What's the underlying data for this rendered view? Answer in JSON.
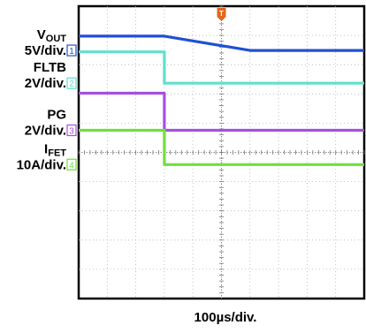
{
  "chart_data": {
    "type": "line",
    "xlabel": "100µs/div.",
    "x_units": "µs",
    "x_range": [
      0,
      1000
    ],
    "trigger_time": 500,
    "series": [
      {
        "label_main": "V",
        "label_sub": "OUT",
        "scale": "5V/div.",
        "channel": "1",
        "color": "#1f4fd6",
        "marker_row": 1.55,
        "points": [
          [
            0,
            1.05
          ],
          [
            300,
            1.05
          ],
          [
            600,
            1.55
          ],
          [
            1000,
            1.55
          ]
        ]
      },
      {
        "label_main": "FLTB",
        "label_sub": "",
        "scale": "2V/div.",
        "channel": "2",
        "color": "#5fe0cc",
        "marker_row": 2.7,
        "points": [
          [
            0,
            1.6
          ],
          [
            300,
            1.6
          ],
          [
            300,
            2.7
          ],
          [
            1000,
            2.7
          ]
        ]
      },
      {
        "label_main": "PG",
        "label_sub": "",
        "scale": "2V/div.",
        "channel": "3",
        "color": "#a64fe0",
        "marker_row": 4.35,
        "points": [
          [
            0,
            3.05
          ],
          [
            300,
            3.05
          ],
          [
            300,
            4.35
          ],
          [
            1000,
            4.35
          ]
        ]
      },
      {
        "label_main": "I",
        "label_sub": "FET",
        "scale": "10A/div.",
        "channel": "4",
        "color": "#6de13a",
        "marker_row": 5.55,
        "points": [
          [
            0,
            4.35
          ],
          [
            300,
            4.35
          ],
          [
            300,
            5.55
          ],
          [
            1000,
            5.55
          ]
        ]
      }
    ],
    "trigger_label": "T",
    "trigger_color": "#e2641e"
  }
}
